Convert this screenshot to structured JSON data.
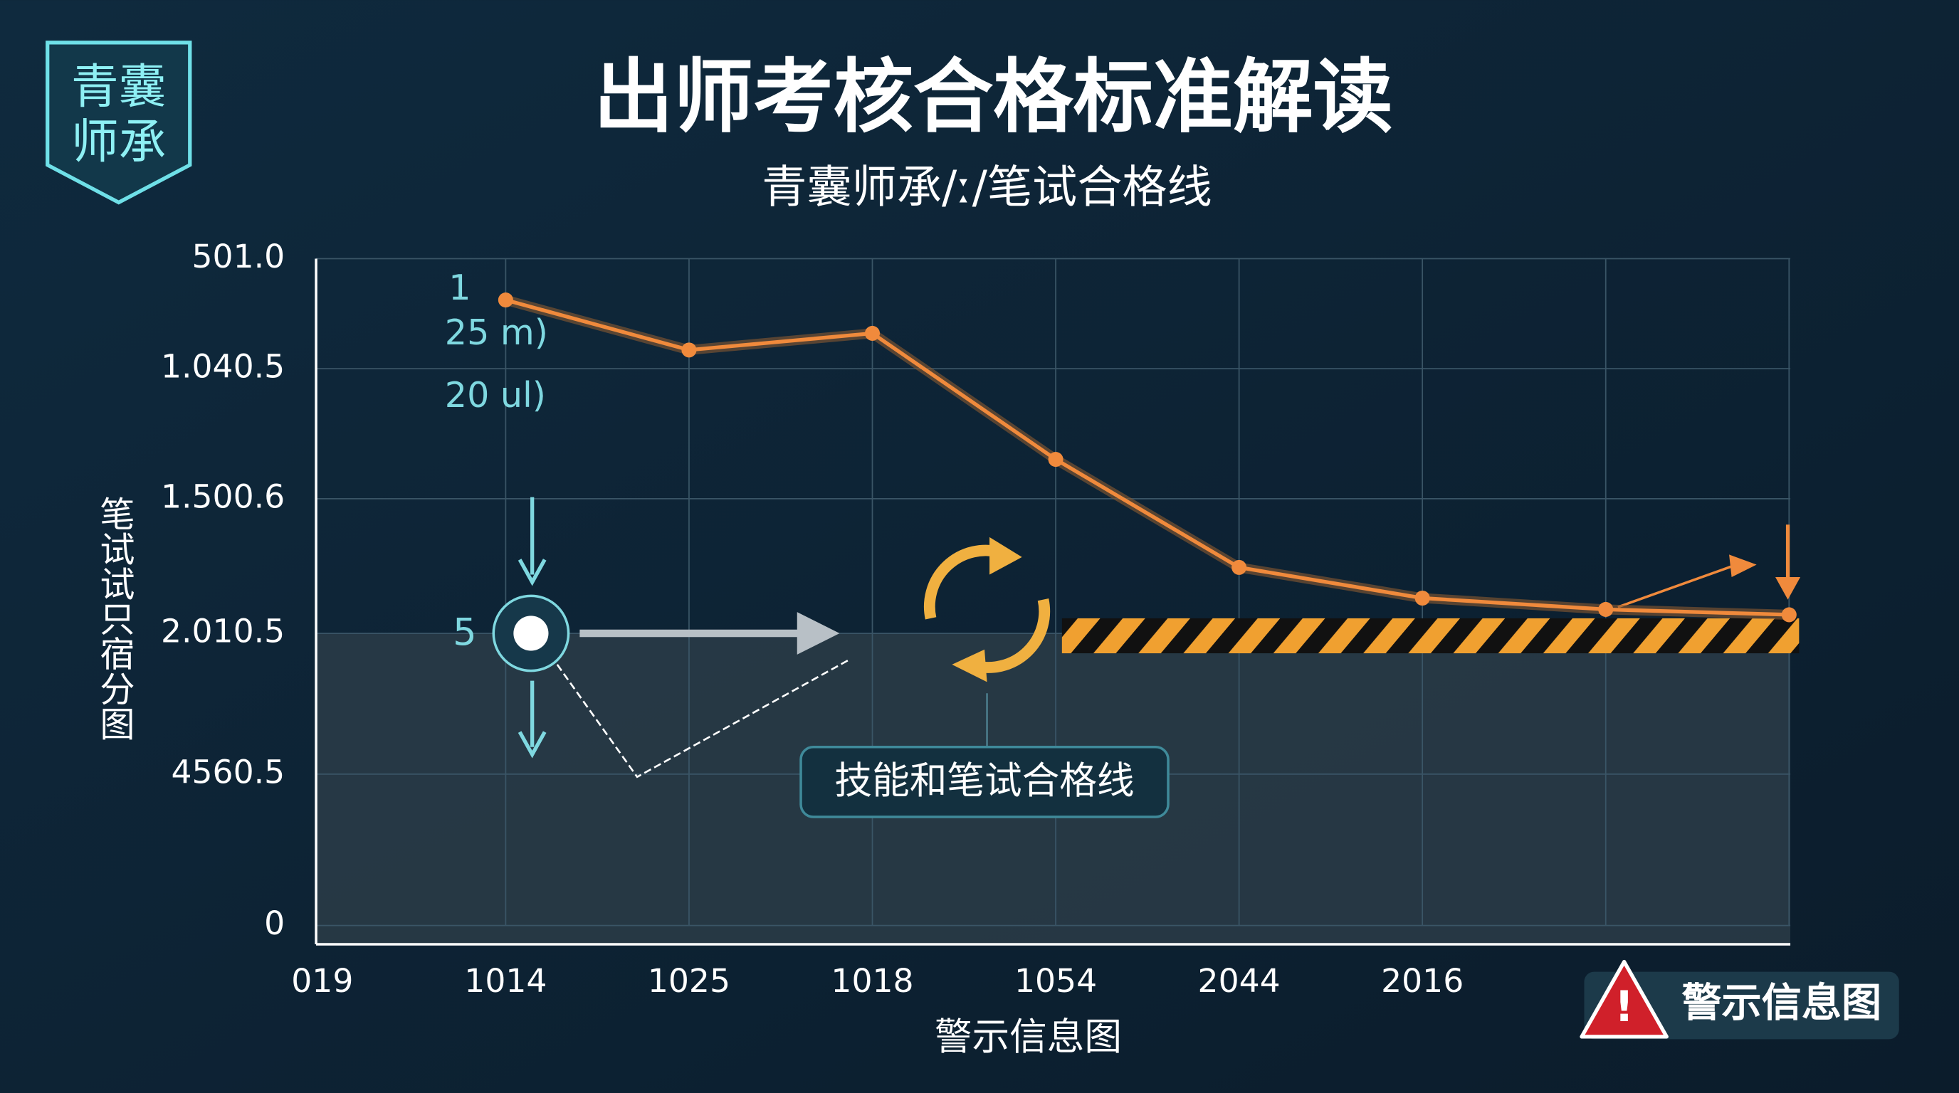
{
  "chart_data": {
    "type": "line",
    "title": "出师考核合格标准解读",
    "subtitle": "青囊师承/ː/笔试合格线",
    "logo": [
      "青囊",
      "师承"
    ],
    "y_label": "笔试试只宿分图",
    "x_label": "警示信息图",
    "badge": "警示信息图",
    "annotations": [
      "1",
      "25 m)",
      "20 ul)",
      "5",
      "技能和笔试合格线"
    ],
    "categories": [
      "019",
      "1014",
      "1025",
      "1018",
      "1054",
      "2044",
      "2016",
      null,
      null
    ],
    "series": [
      {
        "color": "#f08a3c",
        "values": [
          null,
          93.8,
          86.3,
          88.8,
          69.9,
          53.7,
          49.1,
          47.4,
          46.6
        ]
      }
    ],
    "ylim": [
      0,
      100
    ],
    "yticks": [
      0,
      {
        "value": 22.7,
        "label": "4560.5"
      },
      {
        "value": 43.8,
        "label": "2.010.5"
      },
      {
        "value": 64,
        "label": "1.500.6"
      },
      {
        "value": 83.5,
        "label": "1.040.5"
      },
      {
        "value": 100,
        "label": "501.0"
      }
    ],
    "grid": true
  }
}
